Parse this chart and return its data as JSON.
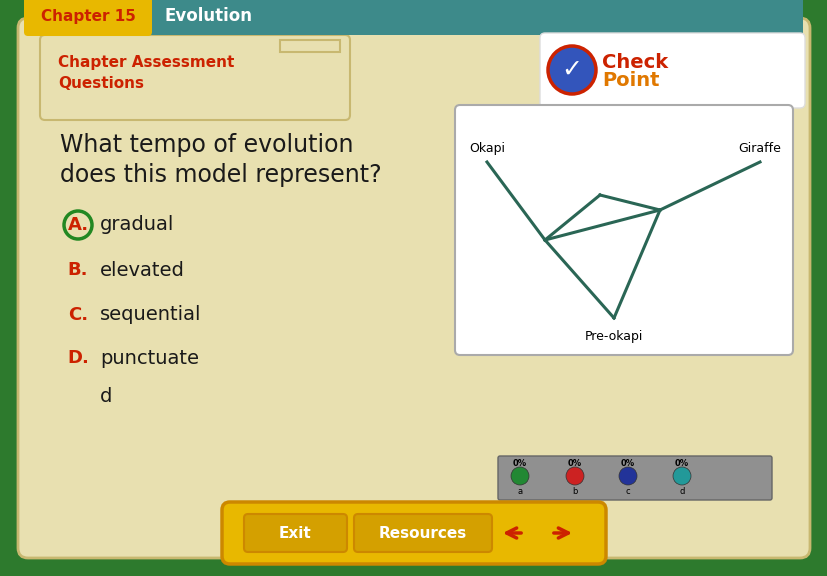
{
  "bg_outer": "#2d7a2d",
  "bg_header_teal": "#3d8a8a",
  "header_tab_yellow": "#e8b800",
  "header_text": "Chapter 15",
  "header_text_color": "#cc2200",
  "header_evolution": "Evolution",
  "header_evolution_color": "#ffffff",
  "main_bg": "#e8e0b0",
  "main_border": "#c8b870",
  "section_label_color": "#cc2200",
  "section_label_line1": "Chapter Assessment",
  "section_label_line2": "Questions",
  "question_line1": "What tempo of evolution",
  "question_line2": "does this model represent?",
  "question_color": "#1a1a1a",
  "answer_A_letter": "A.",
  "answer_A_text": "gradual",
  "answer_B_letter": "B.",
  "answer_B_text": "elevated",
  "answer_C_letter": "C.",
  "answer_C_text": "sequential",
  "answer_D_letter": "D.",
  "answer_D_text": "punctuate",
  "answer_D_text2": "d",
  "answer_letter_color": "#cc2200",
  "answer_text_color": "#1a1a1a",
  "answer_A_circle_color": "#228822",
  "diag_bg": "#ffffff",
  "diag_border": "#aaaaaa",
  "tree_color": "#2a6655",
  "okapi_label": "Okapi",
  "giraffe_label": "Giraffe",
  "preokapi_label": "Pre-okapi",
  "checkpoint_bg": "#ffffff",
  "check_circle_fill": "#3355bb",
  "check_circle_edge": "#cc2200",
  "check_word_color": "#cc2200",
  "point_word_color": "#e07800",
  "poll_bar_bg": "#909090",
  "poll_colors": [
    "#228833",
    "#cc2222",
    "#223399",
    "#229999"
  ],
  "poll_labels": [
    "a",
    "b",
    "c",
    "d"
  ],
  "footer_bg": "#e8b800",
  "footer_border": "#cc8800",
  "exit_text": "Exit",
  "resources_text": "Resources",
  "btn_bg": "#e8b800",
  "btn_border": "#cc8800",
  "arrow_color": "#cc2200"
}
